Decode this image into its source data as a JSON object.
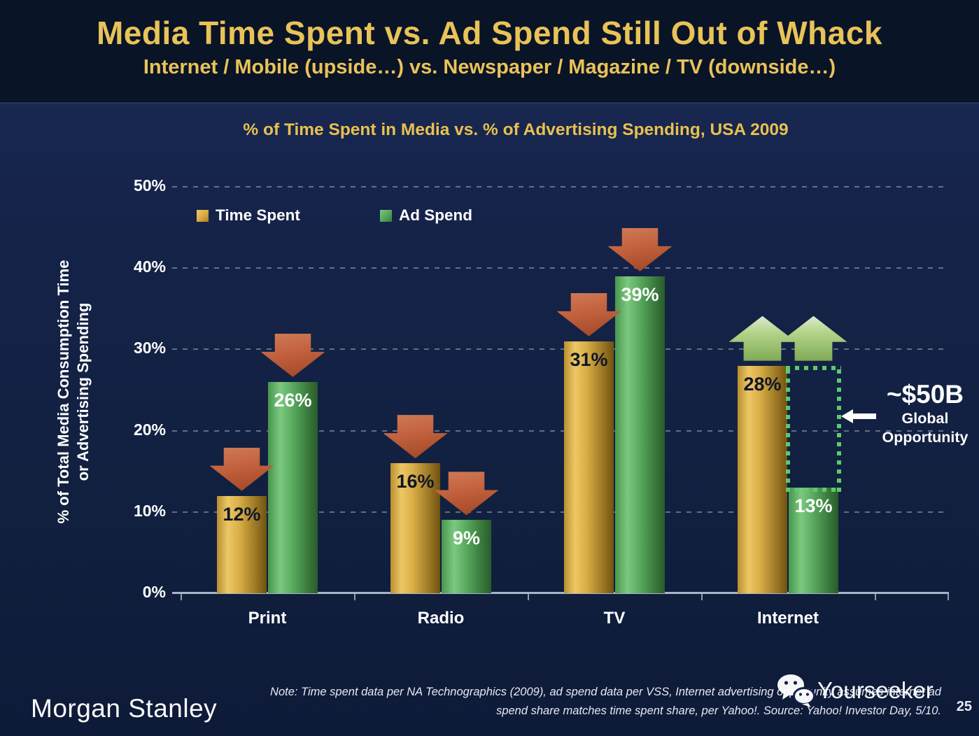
{
  "slide": {
    "title": "Media Time Spent vs. Ad Spend Still Out of Whack",
    "subtitle": "Internet / Mobile (upside…) vs. Newspaper / Magazine / TV (downside…)",
    "brand": "Morgan Stanley",
    "watermark": "Yourseeker",
    "page_number": "25",
    "note_line1": "Note: Time spent data per NA Technographics (2009), ad spend data per VSS, Internet advertising opportunity assumes internet ad",
    "note_line2": "spend share matches time spent share, per Yahoo!. Source: Yahoo! Investor Day, 5/10."
  },
  "chart_data": {
    "type": "bar",
    "title": "% of Time Spent in Media vs. % of Advertising Spending, USA 2009",
    "categories": [
      "Print",
      "Radio",
      "TV",
      "Internet"
    ],
    "series": [
      {
        "name": "Time Spent",
        "values": [
          12,
          16,
          31,
          28
        ],
        "color": "#d9a93f"
      },
      {
        "name": "Ad Spend",
        "values": [
          26,
          9,
          39,
          13
        ],
        "color": "#55a55c"
      }
    ],
    "value_suffix": "%",
    "ylabel_line1": "% of Total Media Consumption Time",
    "ylabel_line2": "or Advertising Spending",
    "yticks": [
      "50%",
      "40%",
      "30%",
      "20%",
      "10%",
      "0%"
    ],
    "ylim": [
      0,
      50
    ],
    "grid": "dashed-horizontal",
    "legend_position": "top-left",
    "annotations": {
      "arrow_dirs": {
        "Print": [
          "down",
          "down"
        ],
        "Radio": [
          "down",
          "down"
        ],
        "TV": [
          "down",
          "down"
        ],
        "Internet": [
          "up",
          "up"
        ]
      },
      "down_arrow_color": "#bb5a36",
      "up_arrow_color": "#a8cc7e",
      "gap_rect": {
        "category": "Internet",
        "series_index": 1,
        "from": 13,
        "to": 28,
        "color": "#5ec96d"
      },
      "callout": {
        "value": "~$50B",
        "line1": "Global",
        "line2": "Opportunity"
      }
    }
  }
}
